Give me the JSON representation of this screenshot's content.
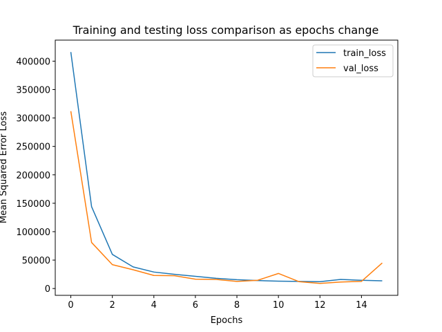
{
  "chart_data": {
    "type": "line",
    "title": "Training and testing loss comparison as epochs change",
    "xlabel": "Epochs",
    "ylabel": "Mean Squared Error Loss",
    "xlim": [
      -0.75,
      15.75
    ],
    "ylim": [
      -12000,
      437000
    ],
    "xticks": [
      0,
      2,
      4,
      6,
      8,
      10,
      12,
      14
    ],
    "xtick_labels": [
      "0",
      "2",
      "4",
      "6",
      "8",
      "10",
      "12",
      "14"
    ],
    "yticks": [
      0,
      50000,
      100000,
      150000,
      200000,
      250000,
      300000,
      350000,
      400000
    ],
    "ytick_labels": [
      "0",
      "50000",
      "100000",
      "150000",
      "200000",
      "250000",
      "300000",
      "350000",
      "400000"
    ],
    "grid": false,
    "legend_position": "top-right",
    "x": [
      0,
      1,
      2,
      3,
      4,
      5,
      6,
      7,
      8,
      9,
      10,
      11,
      12,
      13,
      14,
      15
    ],
    "series": [
      {
        "name": "train_loss",
        "color": "#1f77b4",
        "values": [
          416000,
          144000,
          60000,
          38000,
          29000,
          25000,
          21500,
          18000,
          15500,
          14000,
          13000,
          12500,
          12000,
          16000,
          14500,
          13500
        ]
      },
      {
        "name": "val_loss",
        "color": "#ff7f0e",
        "values": [
          312000,
          81000,
          42000,
          33000,
          23000,
          22500,
          16500,
          16000,
          12500,
          14500,
          26500,
          12000,
          9000,
          11500,
          12500,
          45000
        ]
      }
    ]
  }
}
